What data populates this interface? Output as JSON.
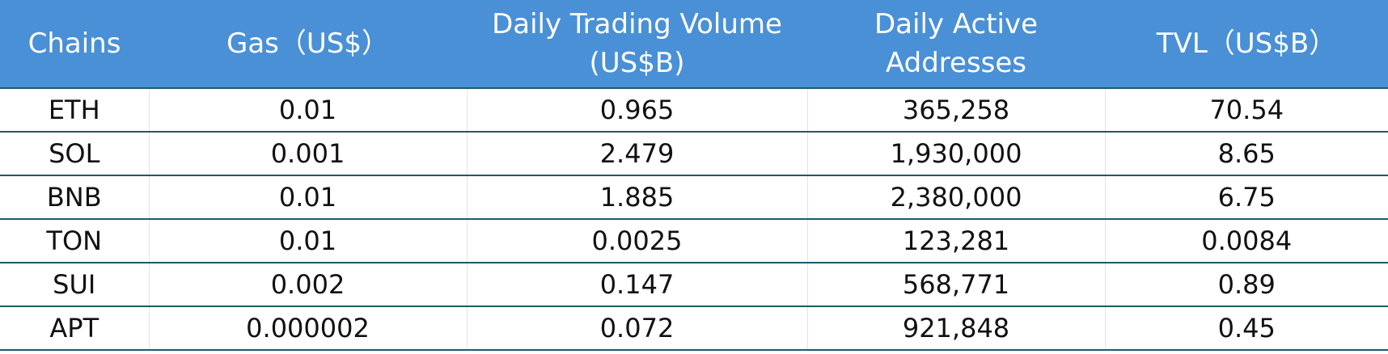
{
  "table": {
    "header": [
      "Chains",
      "Gas（US$）",
      "Daily Trading Volume (US$B)",
      "Daily Active Addresses",
      "TVL（US$B）"
    ],
    "rows": [
      [
        "ETH",
        "0.01",
        "0.965",
        "365,258",
        "70.54"
      ],
      [
        "SOL",
        "0.001",
        "2.479",
        "1,930,000",
        "8.65"
      ],
      [
        "BNB",
        "0.01",
        "1.885",
        "2,380,000",
        "6.75"
      ],
      [
        "TON",
        "0.01",
        "0.0025",
        "123,281",
        "0.0084"
      ],
      [
        "SUI",
        "0.002",
        "0.147",
        "568,771",
        "0.89"
      ],
      [
        "APT",
        "0.000002",
        "0.072",
        "921,848",
        "0.45"
      ]
    ]
  }
}
